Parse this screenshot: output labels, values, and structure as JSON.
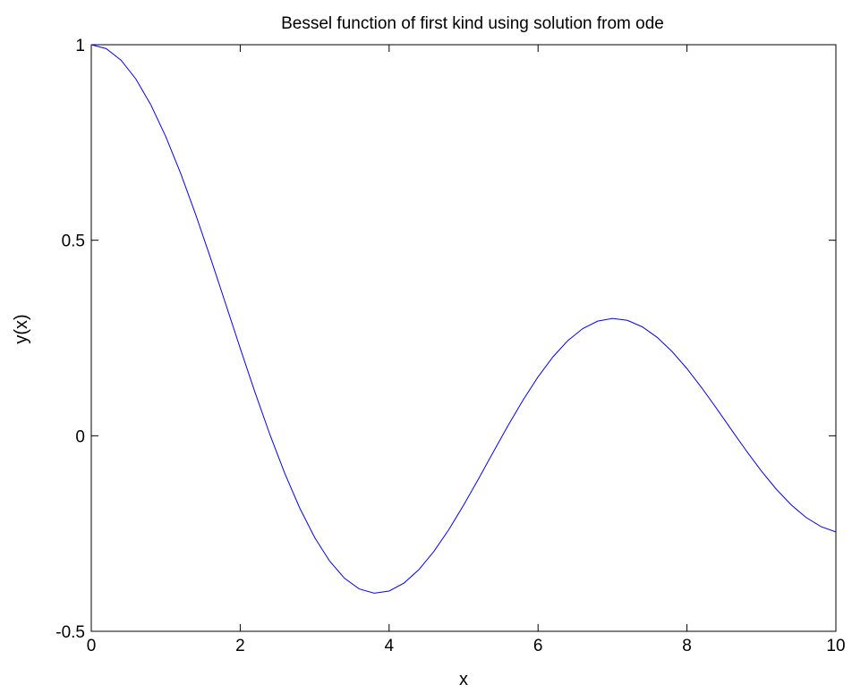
{
  "chart_data": {
    "type": "line",
    "title": "Bessel function of first kind using solution from ode",
    "xlabel": "x",
    "ylabel": "y(x)",
    "xlim": [
      0,
      10
    ],
    "ylim": [
      -0.5,
      1
    ],
    "xticks": [
      0,
      2,
      4,
      6,
      8,
      10
    ],
    "xtick_labels": [
      "0",
      "2",
      "4",
      "6",
      "8",
      "10"
    ],
    "yticks": [
      -0.5,
      0,
      0.5,
      1
    ],
    "ytick_labels": [
      "-0.5",
      "0",
      "0.5",
      "1"
    ],
    "grid": false,
    "line_color": "#0000ff",
    "series": [
      {
        "x": [
          0.0,
          0.2,
          0.4,
          0.6,
          0.8,
          1.0,
          1.2,
          1.4,
          1.6,
          1.8,
          2.0,
          2.2,
          2.4,
          2.6,
          2.8,
          3.0,
          3.2,
          3.4,
          3.6,
          3.8,
          4.0,
          4.2,
          4.4,
          4.6,
          4.8,
          5.0,
          5.2,
          5.4,
          5.6,
          5.8,
          6.0,
          6.2,
          6.4,
          6.6,
          6.8,
          7.0,
          7.2,
          7.4,
          7.6,
          7.8,
          8.0,
          8.2,
          8.4,
          8.6,
          8.8,
          9.0,
          9.2,
          9.4,
          9.6,
          9.8,
          10.0
        ],
        "values": [
          1.0,
          0.99,
          0.9604,
          0.912,
          0.8463,
          0.7652,
          0.6711,
          0.5669,
          0.4554,
          0.34,
          0.2239,
          0.1104,
          0.0025,
          -0.0968,
          -0.185,
          -0.2601,
          -0.3202,
          -0.3643,
          -0.3918,
          -0.4026,
          -0.3971,
          -0.3766,
          -0.3423,
          -0.2961,
          -0.2404,
          -0.1776,
          -0.1103,
          -0.0412,
          0.027,
          0.0917,
          0.1506,
          0.2017,
          0.2433,
          0.274,
          0.2931,
          0.3001,
          0.2951,
          0.2786,
          0.2516,
          0.2154,
          0.1717,
          0.1222,
          0.0692,
          0.0146,
          -0.0392,
          -0.0903,
          -0.1367,
          -0.1768,
          -0.209,
          -0.2323,
          -0.2459
        ]
      }
    ]
  }
}
